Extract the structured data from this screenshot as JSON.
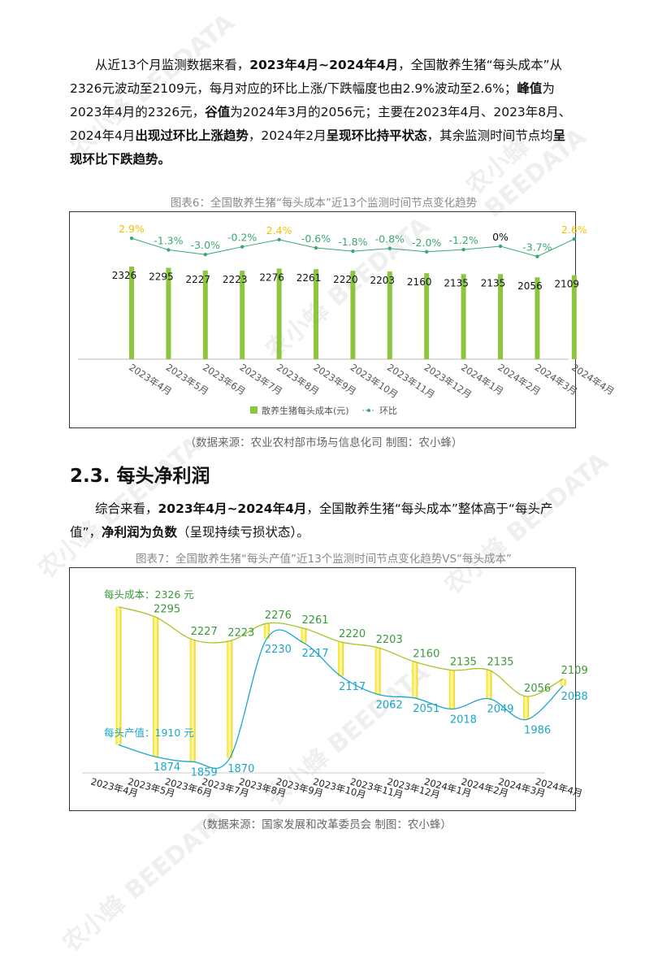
{
  "paragraph1": [
    {
      "t": "从近13个月监测数据来看，"
    },
    {
      "t": "2023年4月~2024年4月",
      "b": true
    },
    {
      "t": "，全国散养生猪“每头成本”从2326元波动至2109元，每月对应的环比上涨/下跌幅度也由2.9%波动至2.6%；"
    },
    {
      "t": "峰值",
      "b": true
    },
    {
      "t": "为2023年4月的2326元，"
    },
    {
      "t": "谷值",
      "b": true
    },
    {
      "t": "为2024年3月的2056元；主要在2023年4月、2023年8月、2024年4月"
    },
    {
      "t": "出现过环比上涨趋势",
      "b": true
    },
    {
      "t": "，2024年2月"
    },
    {
      "t": "呈现环比持平状态",
      "b": true
    },
    {
      "t": "，其余监测时间节点均"
    },
    {
      "t": "呈现环比下跌趋势。",
      "b": true
    }
  ],
  "chart1_caption": "图表6：全国散养生猪“每头成本”近13个监测时间节点变化趋势",
  "chart1_source": "（数据来源：农业农村部市场与信息化司      制图：农小蜂）",
  "section_heading": "2.3.  每头净利润",
  "paragraph2": [
    {
      "t": "综合来看，"
    },
    {
      "t": "2023年4月~2024年4月",
      "b": true
    },
    {
      "t": "，全国散养生猪“每头成本”整体高于“每头产值”，"
    },
    {
      "t": "净利润为负数",
      "b": true
    },
    {
      "t": "（呈现持续亏损状态）。"
    }
  ],
  "chart2_caption": "图表7：全国散养生猪“每头产值”近13个监测时间节点变化趋势VS“每头成本”",
  "chart2_source": "（数据来源：国家发展和改革委员会      制图：农小蜂）",
  "watermark": "农小蜂 BEEDATA",
  "chart_data": [
    {
      "type": "bar",
      "categories": [
        "2023年4月",
        "2023年5月",
        "2023年6月",
        "2023年7月",
        "2023年8月",
        "2023年9月",
        "2023年10月",
        "2023年11月",
        "2023年12月",
        "2024年1月",
        "2024年2月",
        "2024年3月",
        "2024年4月"
      ],
      "series": [
        {
          "name": "散养生猪每头成本(元)",
          "type": "bar",
          "color": "#8cc63f",
          "values": [
            2326,
            2295,
            2227,
            2223,
            2276,
            2261,
            2220,
            2203,
            2160,
            2135,
            2135,
            2056,
            2109
          ]
        },
        {
          "name": "环比",
          "type": "line",
          "color": "#3aa870",
          "values": [
            2.9,
            -1.3,
            -3.0,
            -0.2,
            2.4,
            -0.6,
            -1.8,
            -0.8,
            -2.0,
            -1.2,
            0,
            -3.7,
            2.6
          ],
          "labels": [
            "2.9%",
            "-1.3%",
            "-3.0%",
            "-0.2%",
            "2.4%",
            "-0.6%",
            "-1.8%",
            "-0.8%",
            "-2.0%",
            "-1.2%",
            "0%",
            "-3.7%",
            "2.6%"
          ]
        }
      ],
      "legend_position": "bottom",
      "colors": {
        "rise": "#f5c000",
        "fall": "#3aa870",
        "flat": "#111111"
      }
    },
    {
      "type": "line",
      "categories": [
        "2023年4月",
        "2023年5月",
        "2023年6月",
        "2023年7月",
        "2023年8月",
        "2023年9月",
        "2023年10月",
        "2023年11月",
        "2023年12月",
        "2024年1月",
        "2024年2月",
        "2024年3月",
        "2024年4月"
      ],
      "series": [
        {
          "name": "每头成本",
          "color": "#a6c62a",
          "label_color": "#3a9a3a",
          "values": [
            2326,
            2295,
            2227,
            2223,
            2276,
            2261,
            2220,
            2203,
            2160,
            2135,
            2135,
            2056,
            2109
          ]
        },
        {
          "name": "每头产值",
          "color": "#1aa7c9",
          "label_color": "#1aa7c9",
          "values": [
            1910,
            1874,
            1859,
            1870,
            2230,
            2217,
            2117,
            2062,
            2051,
            2018,
            2049,
            1986,
            2088
          ]
        }
      ],
      "annotations": {
        "cost_first": "每头成本：2326 元",
        "value_first": "每头产值：1910 元"
      },
      "gap_bar_color": "#f5e000"
    }
  ]
}
